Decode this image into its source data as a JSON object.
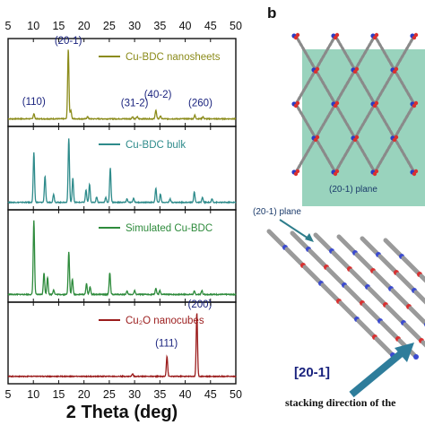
{
  "chart_data": {
    "type": "line",
    "xlabel": "2 Theta (deg)",
    "ylabel": "",
    "xlim": [
      5,
      50
    ],
    "xticks": [
      5,
      10,
      15,
      20,
      25,
      30,
      35,
      40,
      45,
      50
    ],
    "grid": false,
    "panels": [
      {
        "name": "Cu-BDC nanosheets",
        "color": "#8b8b1a",
        "baseline": 0.03,
        "peaks": [
          [
            10.1,
            0.07
          ],
          [
            16.9,
            0.95
          ],
          [
            17.4,
            0.12
          ],
          [
            20.7,
            0.03
          ],
          [
            29.6,
            0.03
          ],
          [
            30.5,
            0.03
          ],
          [
            34.2,
            0.12
          ],
          [
            35.1,
            0.04
          ],
          [
            41.9,
            0.05
          ],
          [
            43.5,
            0.03
          ]
        ],
        "labels": [
          {
            "text": "(20-1)",
            "x": 16.9,
            "y": 1.0
          },
          {
            "text": "(110)",
            "x": 10.1,
            "y": 0.17
          },
          {
            "text": "(31-2)",
            "x": 30.0,
            "y": 0.15
          },
          {
            "text": "(40-2)",
            "x": 34.6,
            "y": 0.27
          },
          {
            "text": "(260)",
            "x": 43.0,
            "y": 0.15
          }
        ]
      },
      {
        "name": "Cu-BDC bulk",
        "color": "#2e8b8b",
        "baseline": 0.03,
        "peaks": [
          [
            10.1,
            0.72
          ],
          [
            12.3,
            0.38
          ],
          [
            14.0,
            0.12
          ],
          [
            17.0,
            0.93
          ],
          [
            17.8,
            0.35
          ],
          [
            20.4,
            0.18
          ],
          [
            21.1,
            0.26
          ],
          [
            22.5,
            0.08
          ],
          [
            24.3,
            0.07
          ],
          [
            25.2,
            0.5
          ],
          [
            28.5,
            0.05
          ],
          [
            29.8,
            0.06
          ],
          [
            34.2,
            0.2
          ],
          [
            35.1,
            0.12
          ],
          [
            37.0,
            0.05
          ],
          [
            41.8,
            0.15
          ],
          [
            43.4,
            0.07
          ],
          [
            45.3,
            0.05
          ]
        ],
        "labels": []
      },
      {
        "name": "Simulated Cu-BDC",
        "color": "#2e8b3c",
        "baseline": 0.03,
        "peaks": [
          [
            10.1,
            0.95
          ],
          [
            12.1,
            0.28
          ],
          [
            12.8,
            0.22
          ],
          [
            14.0,
            0.06
          ],
          [
            17.0,
            0.55
          ],
          [
            17.7,
            0.2
          ],
          [
            20.5,
            0.14
          ],
          [
            21.2,
            0.1
          ],
          [
            25.1,
            0.28
          ],
          [
            28.5,
            0.04
          ],
          [
            30.0,
            0.05
          ],
          [
            34.2,
            0.08
          ],
          [
            35.0,
            0.05
          ],
          [
            41.8,
            0.04
          ],
          [
            43.3,
            0.05
          ]
        ],
        "labels": []
      },
      {
        "name": "Cu₂O nanocubes",
        "color": "#9b1c1c",
        "baseline": 0.03,
        "peaks": [
          [
            29.6,
            0.04
          ],
          [
            36.4,
            0.3
          ],
          [
            42.3,
            0.95
          ]
        ],
        "labels": [
          {
            "text": "(200)",
            "x": 42.9,
            "y": 1.0
          },
          {
            "text": "(111)",
            "x": 36.3,
            "y": 0.42
          }
        ]
      }
    ]
  },
  "panel_b": {
    "letter": "b",
    "plane_label": "(20-1) plane",
    "plane_callout": "(20-1) plane",
    "direction_label": "[20-1]",
    "caption": "stacking direction of the"
  }
}
